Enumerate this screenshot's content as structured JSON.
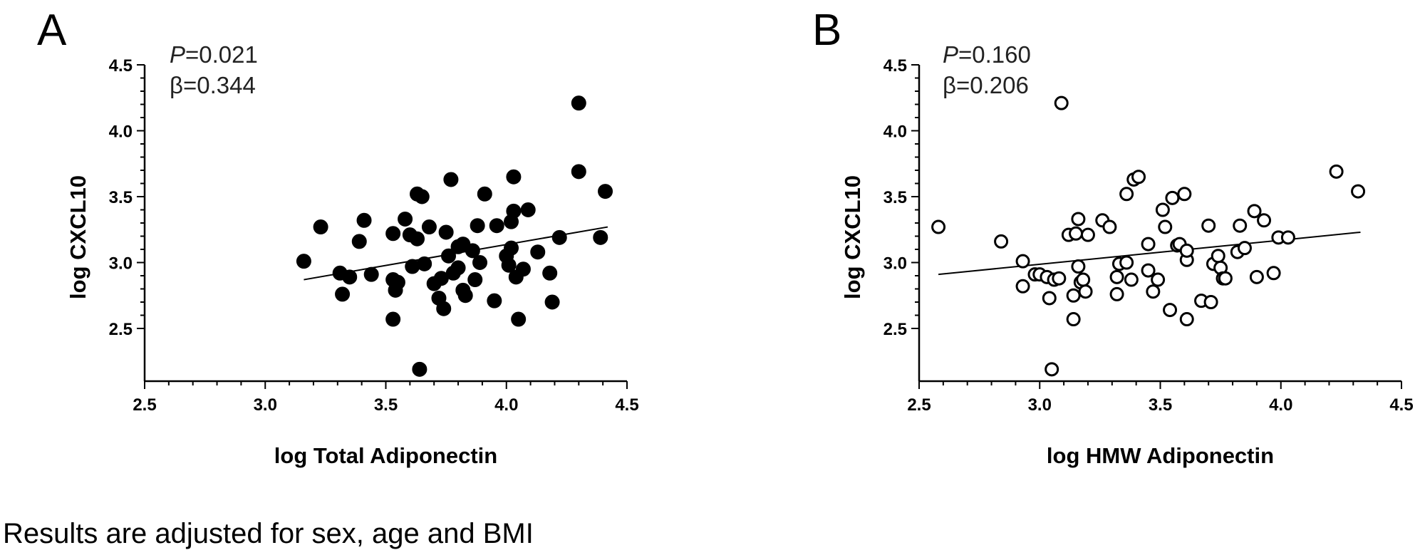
{
  "footnote": "Results are adjusted for sex, age and BMI",
  "chart_data": [
    {
      "type": "scatter",
      "panel_label": "A",
      "stat_p_label": "P",
      "stat_p_value": "=0.021",
      "stat_beta": "β=0.344",
      "xlabel": "log Total Adiponectin",
      "ylabel": "log CXCL10",
      "xlim": [
        2.5,
        4.5
      ],
      "ylim": [
        2.1,
        4.5
      ],
      "xticks": [
        "2.5",
        "3.0",
        "3.5",
        "4.0",
        "4.5"
      ],
      "yticks": [
        "2.5",
        "3.0",
        "3.5",
        "4.0",
        "4.5"
      ],
      "marker": "filled",
      "fit_line": [
        [
          3.16,
          2.87
        ],
        [
          4.42,
          3.27
        ]
      ],
      "points": [
        [
          3.16,
          3.01
        ],
        [
          3.23,
          3.27
        ],
        [
          3.31,
          2.92
        ],
        [
          3.32,
          2.76
        ],
        [
          3.35,
          2.89
        ],
        [
          3.39,
          3.16
        ],
        [
          3.41,
          3.32
        ],
        [
          3.44,
          2.91
        ],
        [
          3.53,
          2.87
        ],
        [
          3.53,
          2.57
        ],
        [
          3.53,
          3.22
        ],
        [
          3.54,
          2.79
        ],
        [
          3.55,
          2.85
        ],
        [
          3.58,
          3.33
        ],
        [
          3.6,
          3.21
        ],
        [
          3.61,
          2.97
        ],
        [
          3.63,
          3.18
        ],
        [
          3.63,
          3.52
        ],
        [
          3.64,
          2.19
        ],
        [
          3.65,
          3.5
        ],
        [
          3.66,
          2.99
        ],
        [
          3.68,
          3.27
        ],
        [
          3.7,
          2.84
        ],
        [
          3.72,
          2.73
        ],
        [
          3.73,
          2.88
        ],
        [
          3.74,
          2.65
        ],
        [
          3.75,
          3.23
        ],
        [
          3.76,
          3.05
        ],
        [
          3.77,
          3.63
        ],
        [
          3.78,
          2.92
        ],
        [
          3.8,
          2.96
        ],
        [
          3.8,
          3.12
        ],
        [
          3.82,
          2.79
        ],
        [
          3.82,
          3.14
        ],
        [
          3.83,
          2.75
        ],
        [
          3.86,
          3.09
        ],
        [
          3.87,
          2.87
        ],
        [
          3.88,
          3.28
        ],
        [
          3.89,
          3.0
        ],
        [
          3.91,
          3.52
        ],
        [
          3.95,
          2.71
        ],
        [
          3.96,
          3.28
        ],
        [
          4.0,
          3.05
        ],
        [
          4.01,
          2.98
        ],
        [
          4.02,
          3.31
        ],
        [
          4.02,
          3.11
        ],
        [
          4.03,
          3.65
        ],
        [
          4.03,
          3.39
        ],
        [
          4.04,
          2.89
        ],
        [
          4.05,
          2.57
        ],
        [
          4.07,
          2.95
        ],
        [
          4.09,
          3.4
        ],
        [
          4.13,
          3.08
        ],
        [
          4.18,
          2.92
        ],
        [
          4.19,
          2.7
        ],
        [
          4.22,
          3.19
        ],
        [
          4.3,
          4.21
        ],
        [
          4.3,
          3.69
        ],
        [
          4.39,
          3.19
        ],
        [
          4.41,
          3.54
        ]
      ]
    },
    {
      "type": "scatter",
      "panel_label": "B",
      "stat_p_label": "P",
      "stat_p_value": "=0.160",
      "stat_beta": "β=0.206",
      "xlabel": "log HMW Adiponectin",
      "ylabel": "log CXCL10",
      "xlim": [
        2.5,
        4.5
      ],
      "ylim": [
        2.1,
        4.5
      ],
      "xticks": [
        "2.5",
        "3.0",
        "3.5",
        "4.0",
        "4.5"
      ],
      "yticks": [
        "2.5",
        "3.0",
        "3.5",
        "4.0",
        "4.5"
      ],
      "marker": "open",
      "fit_line": [
        [
          2.58,
          2.91
        ],
        [
          4.33,
          3.23
        ]
      ],
      "points": [
        [
          2.58,
          3.27
        ],
        [
          2.84,
          3.16
        ],
        [
          2.93,
          3.01
        ],
        [
          2.93,
          2.82
        ],
        [
          2.98,
          2.91
        ],
        [
          3.0,
          2.91
        ],
        [
          3.03,
          2.89
        ],
        [
          3.04,
          2.73
        ],
        [
          3.05,
          2.19
        ],
        [
          3.06,
          2.87
        ],
        [
          3.08,
          2.88
        ],
        [
          3.09,
          4.21
        ],
        [
          3.12,
          3.21
        ],
        [
          3.14,
          2.57
        ],
        [
          3.14,
          2.75
        ],
        [
          3.15,
          3.22
        ],
        [
          3.16,
          2.97
        ],
        [
          3.16,
          3.33
        ],
        [
          3.17,
          2.85
        ],
        [
          3.18,
          2.87
        ],
        [
          3.19,
          2.78
        ],
        [
          3.2,
          3.21
        ],
        [
          3.26,
          3.32
        ],
        [
          3.29,
          3.27
        ],
        [
          3.32,
          2.76
        ],
        [
          3.32,
          2.89
        ],
        [
          3.33,
          2.99
        ],
        [
          3.36,
          3.0
        ],
        [
          3.36,
          3.52
        ],
        [
          3.38,
          2.87
        ],
        [
          3.39,
          3.63
        ],
        [
          3.41,
          3.65
        ],
        [
          3.45,
          2.94
        ],
        [
          3.45,
          3.14
        ],
        [
          3.47,
          2.78
        ],
        [
          3.49,
          2.87
        ],
        [
          3.51,
          3.4
        ],
        [
          3.52,
          3.27
        ],
        [
          3.54,
          2.64
        ],
        [
          3.55,
          3.49
        ],
        [
          3.57,
          3.13
        ],
        [
          3.58,
          3.14
        ],
        [
          3.6,
          3.52
        ],
        [
          3.61,
          2.57
        ],
        [
          3.61,
          3.02
        ],
        [
          3.61,
          3.09
        ],
        [
          3.67,
          2.71
        ],
        [
          3.7,
          3.28
        ],
        [
          3.71,
          2.7
        ],
        [
          3.72,
          2.99
        ],
        [
          3.74,
          3.05
        ],
        [
          3.75,
          2.96
        ],
        [
          3.76,
          2.88
        ],
        [
          3.77,
          2.88
        ],
        [
          3.82,
          3.08
        ],
        [
          3.83,
          3.28
        ],
        [
          3.85,
          3.11
        ],
        [
          3.89,
          3.39
        ],
        [
          3.9,
          2.89
        ],
        [
          3.93,
          3.32
        ],
        [
          3.97,
          2.92
        ],
        [
          3.99,
          3.19
        ],
        [
          4.03,
          3.19
        ],
        [
          4.23,
          3.69
        ],
        [
          4.32,
          3.54
        ]
      ]
    }
  ]
}
